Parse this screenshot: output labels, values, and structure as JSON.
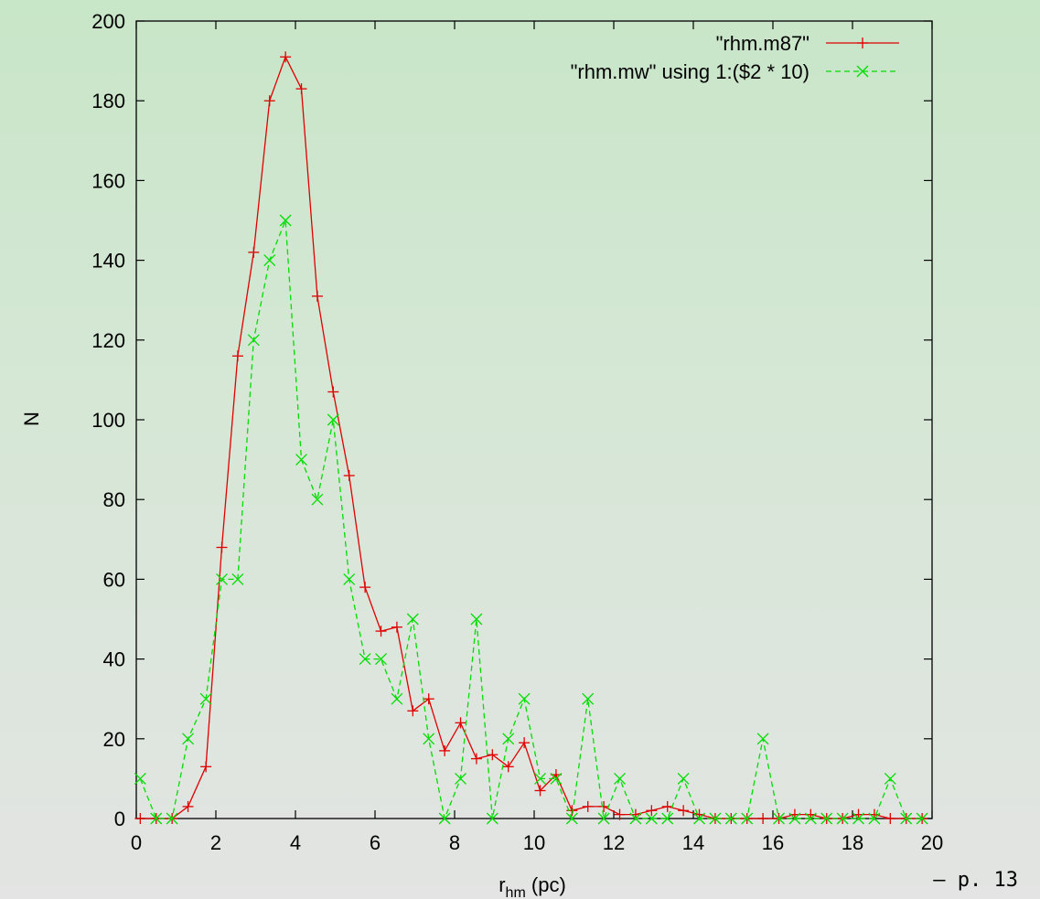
{
  "page_label": "– p. 13",
  "chart_data": {
    "type": "line",
    "xlabel_main": "r",
    "xlabel_sub": "hm",
    "xlabel_unit": " (pc)",
    "ylabel": "N",
    "xlim": [
      0,
      20
    ],
    "ylim": [
      0,
      200
    ],
    "x_ticks": [
      0,
      2,
      4,
      6,
      8,
      10,
      12,
      14,
      16,
      18,
      20
    ],
    "y_ticks": [
      0,
      20,
      40,
      60,
      80,
      100,
      120,
      140,
      160,
      180,
      200
    ],
    "grid": false,
    "legend_position": "top-right",
    "series": [
      {
        "name": "\"rhm.m87\"",
        "color": "#e00000",
        "marker": "plus",
        "dash": "solid",
        "points": [
          [
            0.1,
            0
          ],
          [
            0.5,
            0
          ],
          [
            0.9,
            0
          ],
          [
            1.3,
            3
          ],
          [
            1.75,
            13
          ],
          [
            2.15,
            68
          ],
          [
            2.55,
            116
          ],
          [
            2.95,
            142
          ],
          [
            3.35,
            180
          ],
          [
            3.75,
            191
          ],
          [
            4.15,
            183
          ],
          [
            4.55,
            131
          ],
          [
            4.95,
            107
          ],
          [
            5.35,
            86
          ],
          [
            5.75,
            58
          ],
          [
            6.15,
            47
          ],
          [
            6.55,
            48
          ],
          [
            6.95,
            27
          ],
          [
            7.35,
            30
          ],
          [
            7.75,
            17
          ],
          [
            8.15,
            24
          ],
          [
            8.55,
            15
          ],
          [
            8.95,
            16
          ],
          [
            9.35,
            13
          ],
          [
            9.75,
            19
          ],
          [
            10.15,
            7
          ],
          [
            10.55,
            11
          ],
          [
            10.95,
            2
          ],
          [
            11.35,
            3
          ],
          [
            11.75,
            3
          ],
          [
            12.15,
            1
          ],
          [
            12.55,
            1
          ],
          [
            12.95,
            2
          ],
          [
            13.35,
            3
          ],
          [
            13.75,
            2
          ],
          [
            14.15,
            1
          ],
          [
            14.55,
            0
          ],
          [
            14.95,
            0
          ],
          [
            15.35,
            0
          ],
          [
            15.75,
            0
          ],
          [
            16.15,
            0
          ],
          [
            16.55,
            1
          ],
          [
            16.95,
            1
          ],
          [
            17.35,
            0
          ],
          [
            17.75,
            0
          ],
          [
            18.15,
            1
          ],
          [
            18.55,
            1
          ],
          [
            18.95,
            0
          ],
          [
            19.35,
            0
          ],
          [
            19.75,
            0
          ]
        ]
      },
      {
        "name": "\"rhm.mw\" using 1:($2 * 10)",
        "color": "#00dd00",
        "marker": "cross",
        "dash": "dashed",
        "points": [
          [
            0.1,
            10
          ],
          [
            0.5,
            0
          ],
          [
            0.9,
            0
          ],
          [
            1.3,
            20
          ],
          [
            1.75,
            30
          ],
          [
            2.15,
            60
          ],
          [
            2.55,
            60
          ],
          [
            2.95,
            120
          ],
          [
            3.35,
            140
          ],
          [
            3.75,
            150
          ],
          [
            4.15,
            90
          ],
          [
            4.55,
            80
          ],
          [
            4.95,
            100
          ],
          [
            5.35,
            60
          ],
          [
            5.75,
            40
          ],
          [
            6.15,
            40
          ],
          [
            6.55,
            30
          ],
          [
            6.95,
            50
          ],
          [
            7.35,
            20
          ],
          [
            7.75,
            0
          ],
          [
            8.15,
            10
          ],
          [
            8.55,
            50
          ],
          [
            8.95,
            0
          ],
          [
            9.35,
            20
          ],
          [
            9.75,
            30
          ],
          [
            10.15,
            10
          ],
          [
            10.55,
            10
          ],
          [
            10.95,
            0
          ],
          [
            11.35,
            30
          ],
          [
            11.75,
            0
          ],
          [
            12.15,
            10
          ],
          [
            12.55,
            0
          ],
          [
            12.95,
            0
          ],
          [
            13.35,
            0
          ],
          [
            13.75,
            10
          ],
          [
            14.15,
            0
          ],
          [
            14.55,
            0
          ],
          [
            14.95,
            0
          ],
          [
            15.35,
            0
          ],
          [
            15.75,
            20
          ],
          [
            16.15,
            0
          ],
          [
            16.55,
            0
          ],
          [
            16.95,
            0
          ],
          [
            17.35,
            0
          ],
          [
            17.75,
            0
          ],
          [
            18.15,
            0
          ],
          [
            18.55,
            0
          ],
          [
            18.95,
            10
          ],
          [
            19.35,
            0
          ],
          [
            19.75,
            0
          ]
        ]
      }
    ]
  }
}
